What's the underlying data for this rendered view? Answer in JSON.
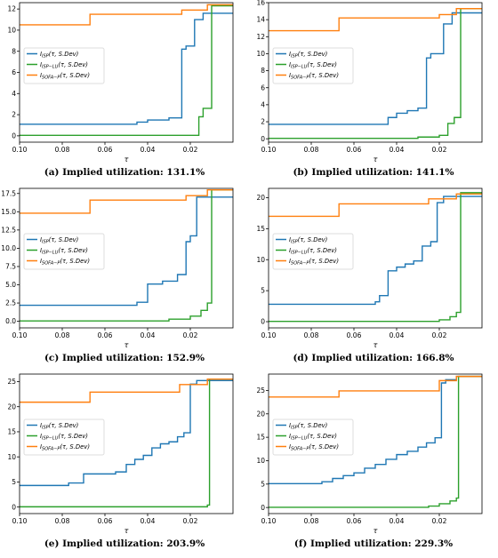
{
  "colors": {
    "isp": "#1f77b4",
    "isp_lu": "#2ca02c",
    "sofa_p": "#ff7f0e",
    "axis": "#000000"
  },
  "legend_labels": [
    "I_ISP(τ, S.Dev)",
    "I_ISP−LU(τ, S.Dev)",
    "I_SOFA−P(τ, S.Dev)"
  ],
  "panels": [
    {
      "caption": "(a) Implied utilization: 131.1%"
    },
    {
      "caption": "(b) Implied utilization: 141.1%"
    },
    {
      "caption": "(c) Implied utilization: 152.9%"
    },
    {
      "caption": "(d) Implied utilization: 166.8%"
    },
    {
      "caption": "(e) Implied utilization: 203.9%"
    },
    {
      "caption": "(f) Implied utilization: 229.3%"
    }
  ],
  "chart_data": [
    {
      "type": "line",
      "xlabel": "τ",
      "xlim": [
        0.1,
        0.0
      ],
      "ylim": [
        -0.6,
        12.6
      ],
      "xticks": [
        0.1,
        0.08,
        0.06,
        0.04,
        0.02
      ],
      "yticks": [
        0,
        2,
        4,
        6,
        8,
        10,
        12
      ],
      "x_tick_labels": [
        "0.10",
        "0.08",
        "0.06",
        "0.04",
        "0.02"
      ],
      "y_tick_labels": [
        "0",
        "2",
        "4",
        "6",
        "8",
        "10",
        "12"
      ],
      "series": [
        {
          "name": "I_ISP(τ, S.Dev)",
          "x": [
            0.1,
            0.045,
            0.045,
            0.04,
            0.04,
            0.03,
            0.03,
            0.024,
            0.024,
            0.022,
            0.022,
            0.018,
            0.018,
            0.014,
            0.014,
            0.0
          ],
          "y": [
            1.1,
            1.1,
            1.3,
            1.3,
            1.5,
            1.5,
            1.7,
            1.7,
            8.2,
            8.2,
            8.5,
            8.5,
            11.0,
            11.0,
            11.6,
            11.6
          ]
        },
        {
          "name": "I_ISP−LU(τ, S.Dev)",
          "x": [
            0.1,
            0.016,
            0.016,
            0.014,
            0.014,
            0.01,
            0.01,
            0.0
          ],
          "y": [
            0.05,
            0.05,
            1.8,
            1.8,
            2.6,
            2.6,
            12.3,
            12.3
          ]
        },
        {
          "name": "I_SOFA−P(τ, S.Dev)",
          "x": [
            0.1,
            0.067,
            0.067,
            0.024,
            0.024,
            0.012,
            0.012,
            0.0
          ],
          "y": [
            10.5,
            10.5,
            11.5,
            11.5,
            11.9,
            11.9,
            12.4,
            12.4
          ]
        }
      ]
    },
    {
      "type": "line",
      "xlabel": "τ",
      "xlim": [
        0.1,
        0.0
      ],
      "ylim": [
        -0.4,
        16.0
      ],
      "xticks": [
        0.1,
        0.08,
        0.06,
        0.04,
        0.02
      ],
      "yticks": [
        0,
        2,
        4,
        6,
        8,
        10,
        12,
        14,
        16
      ],
      "x_tick_labels": [
        "0.10",
        "0.08",
        "0.06",
        "0.04",
        "0.02"
      ],
      "y_tick_labels": [
        "0",
        "2",
        "4",
        "6",
        "8",
        "10",
        "12",
        "14",
        "16"
      ],
      "series": [
        {
          "name": "I_ISP(τ, S.Dev)",
          "x": [
            0.1,
            0.044,
            0.044,
            0.04,
            0.04,
            0.035,
            0.035,
            0.03,
            0.03,
            0.026,
            0.026,
            0.024,
            0.024,
            0.018,
            0.018,
            0.014,
            0.014,
            0.0
          ],
          "y": [
            1.7,
            1.7,
            2.5,
            2.5,
            3.0,
            3.0,
            3.3,
            3.3,
            3.6,
            3.6,
            9.5,
            9.5,
            10.0,
            10.0,
            13.5,
            13.5,
            14.8,
            14.8
          ]
        },
        {
          "name": "I_ISP−LU(τ, S.Dev)",
          "x": [
            0.1,
            0.03,
            0.03,
            0.02,
            0.02,
            0.016,
            0.016,
            0.013,
            0.013,
            0.01,
            0.01,
            0.0
          ],
          "y": [
            0.05,
            0.05,
            0.2,
            0.2,
            0.4,
            0.4,
            1.8,
            1.8,
            2.5,
            2.5,
            15.3,
            15.3
          ]
        },
        {
          "name": "I_SOFA−P(τ, S.Dev)",
          "x": [
            0.1,
            0.067,
            0.067,
            0.02,
            0.02,
            0.012,
            0.012,
            0.0
          ],
          "y": [
            12.7,
            12.7,
            14.2,
            14.2,
            14.6,
            14.6,
            15.3,
            15.3
          ]
        }
      ]
    },
    {
      "type": "line",
      "xlabel": "τ",
      "xlim": [
        0.1,
        0.0
      ],
      "ylim": [
        -0.9,
        18.2
      ],
      "xticks": [
        0.1,
        0.08,
        0.06,
        0.04,
        0.02
      ],
      "yticks": [
        0,
        2.5,
        5,
        7.5,
        10,
        12.5,
        15,
        17.5
      ],
      "x_tick_labels": [
        "0.10",
        "0.08",
        "0.06",
        "0.04",
        "0.02"
      ],
      "y_tick_labels": [
        "0.0",
        "2.5",
        "5.0",
        "7.5",
        "10.0",
        "12.5",
        "15.0",
        "17.5"
      ],
      "series": [
        {
          "name": "I_ISP(τ, S.Dev)",
          "x": [
            0.1,
            0.045,
            0.045,
            0.04,
            0.04,
            0.033,
            0.033,
            0.026,
            0.026,
            0.022,
            0.022,
            0.02,
            0.02,
            0.017,
            0.017,
            0.0
          ],
          "y": [
            2.2,
            2.2,
            2.6,
            2.6,
            5.1,
            5.1,
            5.5,
            5.5,
            6.4,
            6.4,
            10.9,
            10.9,
            11.7,
            11.7,
            17.0,
            17.0
          ]
        },
        {
          "name": "I_ISP−LU(τ, S.Dev)",
          "x": [
            0.1,
            0.03,
            0.03,
            0.02,
            0.02,
            0.015,
            0.015,
            0.012,
            0.012,
            0.01,
            0.01,
            0.0
          ],
          "y": [
            0.05,
            0.05,
            0.3,
            0.3,
            0.7,
            0.7,
            1.5,
            1.5,
            2.5,
            2.5,
            18.0,
            18.0
          ]
        },
        {
          "name": "I_SOFA−P(τ, S.Dev)",
          "x": [
            0.1,
            0.067,
            0.067,
            0.022,
            0.022,
            0.012,
            0.012,
            0.0
          ],
          "y": [
            14.8,
            14.8,
            16.6,
            16.6,
            17.2,
            17.2,
            18.0,
            18.0
          ]
        }
      ]
    },
    {
      "type": "line",
      "xlabel": "τ",
      "xlim": [
        0.1,
        0.0
      ],
      "ylim": [
        -1.0,
        21.5
      ],
      "xticks": [
        0.1,
        0.08,
        0.06,
        0.04,
        0.02
      ],
      "yticks": [
        0,
        5,
        10,
        15,
        20
      ],
      "x_tick_labels": [
        "0.10",
        "0.08",
        "0.06",
        "0.04",
        "0.02"
      ],
      "y_tick_labels": [
        "0",
        "5",
        "10",
        "15",
        "20"
      ],
      "series": [
        {
          "name": "I_ISP(τ, S.Dev)",
          "x": [
            0.1,
            0.05,
            0.05,
            0.048,
            0.048,
            0.044,
            0.044,
            0.04,
            0.04,
            0.036,
            0.036,
            0.032,
            0.032,
            0.028,
            0.028,
            0.024,
            0.024,
            0.021,
            0.021,
            0.018,
            0.018,
            0.0
          ],
          "y": [
            2.8,
            2.8,
            3.2,
            3.2,
            4.2,
            4.2,
            8.2,
            8.2,
            8.8,
            8.8,
            9.3,
            9.3,
            9.8,
            9.8,
            12.2,
            12.2,
            12.9,
            12.9,
            19.2,
            19.2,
            20.2,
            20.2
          ]
        },
        {
          "name": "I_ISP−LU(τ, S.Dev)",
          "x": [
            0.1,
            0.02,
            0.02,
            0.015,
            0.015,
            0.012,
            0.012,
            0.01,
            0.01,
            0.0
          ],
          "y": [
            0.05,
            0.05,
            0.3,
            0.3,
            0.8,
            0.8,
            1.5,
            1.5,
            20.8,
            20.8
          ]
        },
        {
          "name": "I_SOFA−P(τ, S.Dev)",
          "x": [
            0.1,
            0.067,
            0.067,
            0.025,
            0.025,
            0.012,
            0.012,
            0.0
          ],
          "y": [
            17.0,
            17.0,
            19.0,
            19.0,
            19.8,
            19.8,
            20.6,
            20.6
          ]
        }
      ]
    },
    {
      "type": "line",
      "xlabel": "τ",
      "xlim": [
        0.1,
        0.0
      ],
      "ylim": [
        -1.3,
        26.5
      ],
      "xticks": [
        0.1,
        0.08,
        0.06,
        0.04,
        0.02
      ],
      "yticks": [
        0,
        5,
        10,
        15,
        20,
        25
      ],
      "x_tick_labels": [
        "0.10",
        "0.08",
        "0.06",
        "0.04",
        "0.02"
      ],
      "y_tick_labels": [
        "0",
        "5",
        "10",
        "15",
        "20",
        "25"
      ],
      "series": [
        {
          "name": "I_ISP(τ, S.Dev)",
          "x": [
            0.1,
            0.077,
            0.077,
            0.07,
            0.07,
            0.055,
            0.055,
            0.05,
            0.05,
            0.046,
            0.046,
            0.042,
            0.042,
            0.038,
            0.038,
            0.034,
            0.034,
            0.03,
            0.03,
            0.026,
            0.026,
            0.023,
            0.023,
            0.02,
            0.02,
            0.017,
            0.017,
            0.0
          ],
          "y": [
            4.3,
            4.3,
            4.8,
            4.8,
            6.6,
            6.6,
            7.0,
            7.0,
            8.5,
            8.5,
            9.5,
            9.5,
            10.3,
            10.3,
            11.8,
            11.8,
            12.6,
            12.6,
            13.0,
            13.0,
            14.0,
            14.0,
            14.8,
            14.8,
            24.5,
            24.5,
            25.2,
            25.2
          ]
        },
        {
          "name": "I_ISP−LU(τ, S.Dev)",
          "x": [
            0.1,
            0.012,
            0.012,
            0.011,
            0.011,
            0.0
          ],
          "y": [
            0.05,
            0.05,
            0.4,
            0.4,
            25.5,
            25.5
          ]
        },
        {
          "name": "I_SOFA−P(τ, S.Dev)",
          "x": [
            0.1,
            0.067,
            0.067,
            0.025,
            0.025,
            0.012,
            0.012,
            0.0
          ],
          "y": [
            20.9,
            20.9,
            22.9,
            22.9,
            24.4,
            24.4,
            25.5,
            25.5
          ]
        }
      ]
    },
    {
      "type": "line",
      "xlabel": "τ",
      "xlim": [
        0.1,
        0.0
      ],
      "ylim": [
        -1.3,
        28.5
      ],
      "xticks": [
        0.1,
        0.08,
        0.06,
        0.04,
        0.02
      ],
      "yticks": [
        0,
        5,
        10,
        15,
        20,
        25
      ],
      "x_tick_labels": [
        "0.10",
        "0.08",
        "0.06",
        "0.04",
        "0.02"
      ],
      "y_tick_labels": [
        "0",
        "5",
        "10",
        "15",
        "20",
        "25"
      ],
      "series": [
        {
          "name": "I_ISP(τ, S.Dev)",
          "x": [
            0.1,
            0.075,
            0.075,
            0.07,
            0.07,
            0.065,
            0.065,
            0.06,
            0.06,
            0.055,
            0.055,
            0.05,
            0.05,
            0.045,
            0.045,
            0.04,
            0.04,
            0.035,
            0.035,
            0.03,
            0.03,
            0.026,
            0.026,
            0.022,
            0.022,
            0.019,
            0.019,
            0.017,
            0.017,
            0.012,
            0.012,
            0.0
          ],
          "y": [
            5.1,
            5.1,
            5.5,
            5.5,
            6.2,
            6.2,
            6.8,
            6.8,
            7.4,
            7.4,
            8.4,
            8.4,
            9.2,
            9.2,
            10.3,
            10.3,
            11.3,
            11.3,
            12.0,
            12.0,
            12.9,
            12.9,
            13.8,
            13.8,
            14.9,
            14.9,
            26.6,
            26.6,
            27.3,
            27.3,
            28.0,
            28.0
          ]
        },
        {
          "name": "I_ISP−LU(τ, S.Dev)",
          "x": [
            0.1,
            0.025,
            0.025,
            0.02,
            0.02,
            0.015,
            0.015,
            0.012,
            0.012,
            0.011,
            0.011,
            0.0
          ],
          "y": [
            0.05,
            0.05,
            0.3,
            0.3,
            0.8,
            0.8,
            1.4,
            1.4,
            2.0,
            2.0,
            28.0,
            28.0
          ]
        },
        {
          "name": "I_SOFA−P(τ, S.Dev)",
          "x": [
            0.1,
            0.067,
            0.067,
            0.02,
            0.02,
            0.012,
            0.012,
            0.0
          ],
          "y": [
            23.6,
            23.6,
            24.9,
            24.9,
            27.1,
            27.1,
            28.0,
            28.0
          ]
        }
      ]
    }
  ]
}
